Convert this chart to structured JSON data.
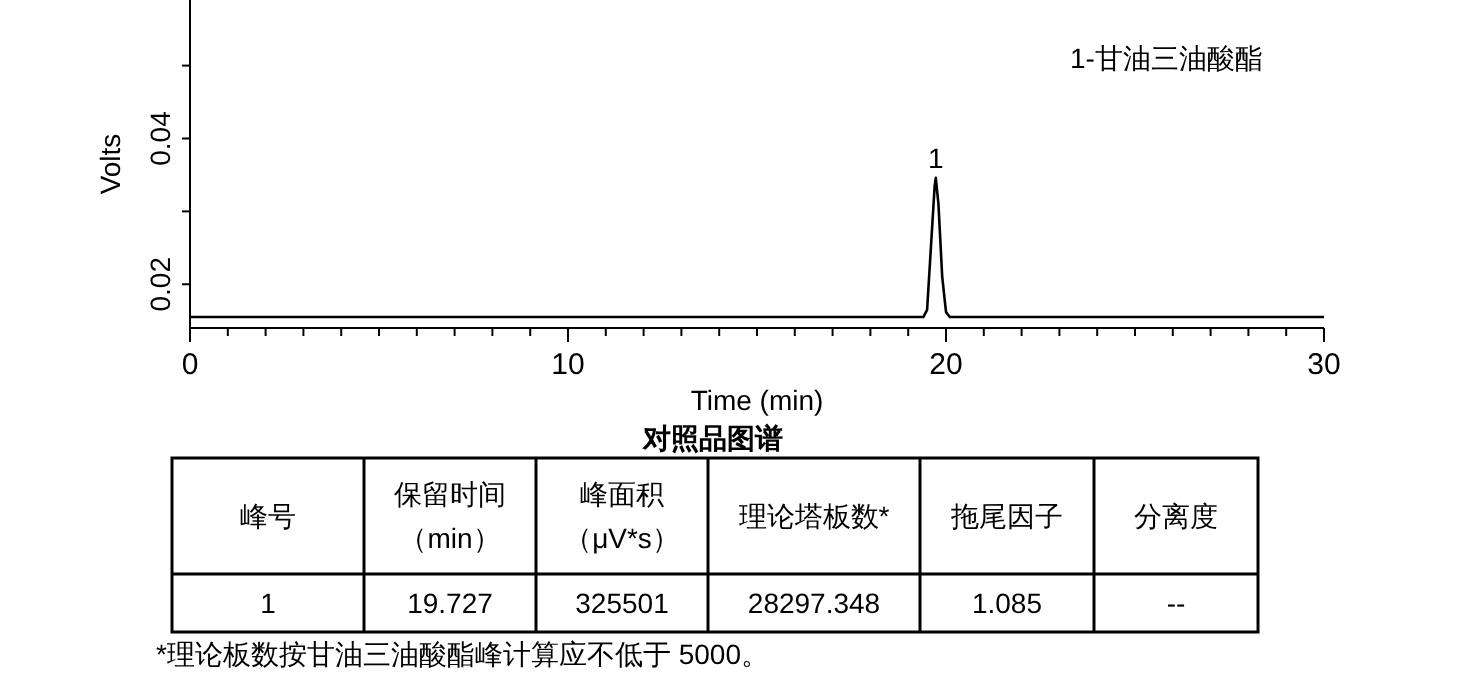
{
  "chart_data": [
    {
      "type": "line",
      "title": "对照品图谱",
      "xlabel": "Time (min)",
      "ylabel": "Volts",
      "x": [
        0,
        19.4,
        19.5,
        19.6,
        19.7,
        19.73,
        19.8,
        19.9,
        20.0,
        20.1,
        30
      ],
      "series": [
        {
          "color": "#000000",
          "values": [
            0.0155,
            0.0155,
            0.0165,
            0.025,
            0.0335,
            0.0346,
            0.031,
            0.021,
            0.0162,
            0.0155,
            0.0155
          ]
        }
      ],
      "xlim": [
        0,
        30
      ],
      "ylim": [
        0.014,
        0.059
      ],
      "xticks": [
        0,
        {
          "value": 1,
          "label": null
        },
        {
          "value": 2,
          "label": null
        },
        {
          "value": 3,
          "label": null
        },
        {
          "value": 4,
          "label": null
        },
        {
          "value": 5,
          "label": null
        },
        {
          "value": 6,
          "label": null
        },
        {
          "value": 7,
          "label": null
        },
        {
          "value": 8,
          "label": null
        },
        {
          "value": 9,
          "label": null
        },
        10,
        {
          "value": 11,
          "label": null
        },
        {
          "value": 12,
          "label": null
        },
        {
          "value": 13,
          "label": null
        },
        {
          "value": 14,
          "label": null
        },
        {
          "value": 15,
          "label": null
        },
        {
          "value": 16,
          "label": null
        },
        {
          "value": 17,
          "label": null
        },
        {
          "value": 18,
          "label": null
        },
        {
          "value": 19,
          "label": null
        },
        20,
        {
          "value": 21,
          "label": null
        },
        {
          "value": 22,
          "label": null
        },
        {
          "value": 23,
          "label": null
        },
        {
          "value": 24,
          "label": null
        },
        {
          "value": 25,
          "label": null
        },
        {
          "value": 26,
          "label": null
        },
        {
          "value": 27,
          "label": null
        },
        {
          "value": 28,
          "label": null
        },
        {
          "value": 29,
          "label": null
        },
        30
      ],
      "yticks": [
        0.02,
        {
          "value": 0.03,
          "label": null
        },
        0.04,
        {
          "value": 0.05,
          "label": null
        }
      ],
      "annotations": [
        "1-甘油三油酸酯",
        {
          "text": "1",
          "x": 19.73,
          "y": 0.0346
        }
      ],
      "grid": false,
      "marker": "none",
      "line_style": "solid"
    },
    {
      "type": "other",
      "subtitle": "*理论板数按甘油三油酸酯峰计算应不低于 5000。",
      "annotations": [
        "峰号",
        "保留时间（min）",
        "峰面积（μV*s）",
        "理论塔板数*",
        "拖尾因子",
        "分离度",
        "1",
        "19.727",
        "325501",
        "28297.348",
        "1.085",
        "--"
      ]
    }
  ]
}
